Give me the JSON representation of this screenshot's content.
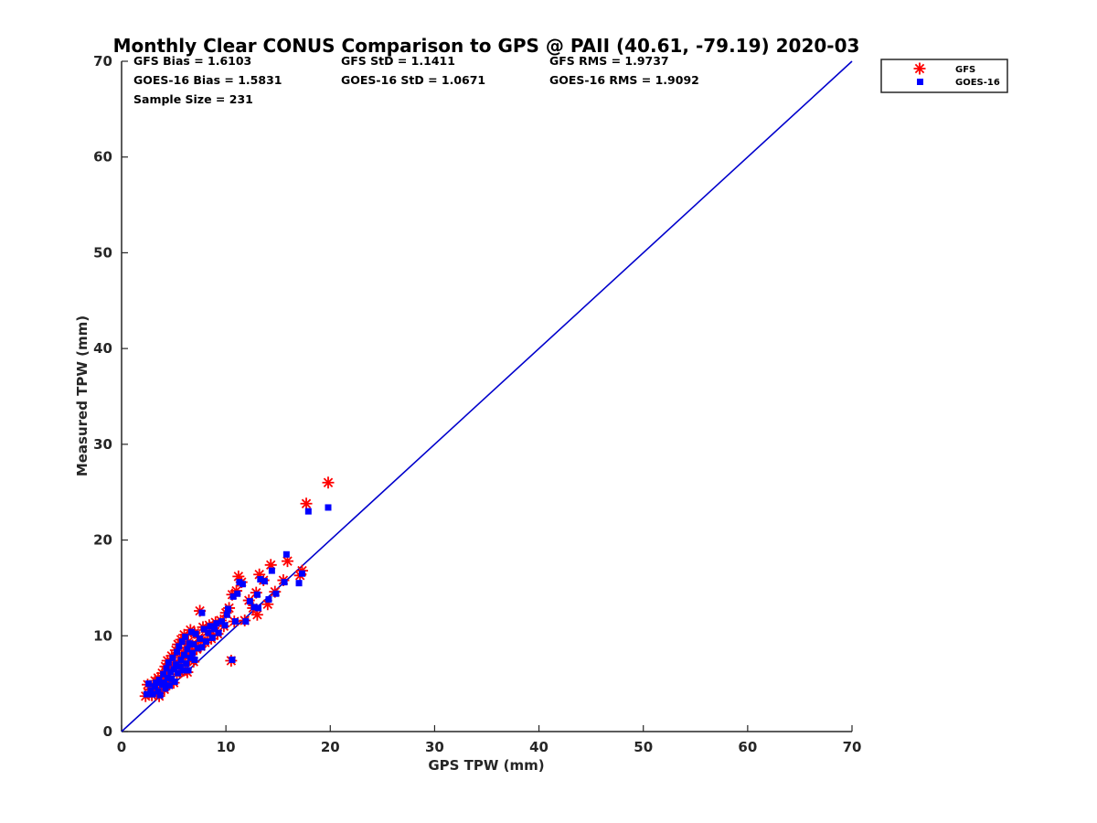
{
  "chart_data": {
    "type": "scatter",
    "title": "Monthly Clear CONUS Comparison to GPS @ PAII (40.61, -79.19) 2020-03",
    "xlabel": "GPS TPW (mm)",
    "ylabel": "Measured TPW (mm)",
    "xlim": [
      0,
      70
    ],
    "ylim": [
      0,
      70
    ],
    "xticks": [
      "0",
      "10",
      "20",
      "30",
      "40",
      "50",
      "60",
      "70"
    ],
    "yticks": [
      "0",
      "10",
      "20",
      "30",
      "40",
      "50",
      "60",
      "70"
    ],
    "grid": false,
    "legend_position": "top-right, outside plot",
    "stats": [
      {
        "text": "GFS Bias = 1.6103"
      },
      {
        "text": "GFS StD = 1.1411"
      },
      {
        "text": "GFS RMS = 1.9737"
      },
      {
        "text": "GOES-16 Bias = 1.5831"
      },
      {
        "text": "GOES-16 StD = 1.0671"
      },
      {
        "text": "GOES-16 RMS = 1.9092"
      },
      {
        "text": "Sample Size = 231"
      }
    ],
    "reference_line": {
      "x": [
        0,
        70
      ],
      "y": [
        0,
        70
      ],
      "color": "#0000cc"
    },
    "series": [
      {
        "name": "GFS",
        "marker": "asterisk",
        "color": "#ff0000",
        "points": [
          [
            2.3,
            3.7
          ],
          [
            2.5,
            4.9
          ],
          [
            2.7,
            4.4
          ],
          [
            2.9,
            3.8
          ],
          [
            3.1,
            4.6
          ],
          [
            3.2,
            5.3
          ],
          [
            3.4,
            4.1
          ],
          [
            3.5,
            5.6
          ],
          [
            3.6,
            3.7
          ],
          [
            3.8,
            4.8
          ],
          [
            3.9,
            6.1
          ],
          [
            4.0,
            5.2
          ],
          [
            4.1,
            4.4
          ],
          [
            4.2,
            6.8
          ],
          [
            4.3,
            5.7
          ],
          [
            4.4,
            7.4
          ],
          [
            4.5,
            4.9
          ],
          [
            4.6,
            6.3
          ],
          [
            4.7,
            5.4
          ],
          [
            4.8,
            7.9
          ],
          [
            4.9,
            6.6
          ],
          [
            5.0,
            5.1
          ],
          [
            5.1,
            7.2
          ],
          [
            5.2,
            8.5
          ],
          [
            5.3,
            6.0
          ],
          [
            5.4,
            9.1
          ],
          [
            5.5,
            6.9
          ],
          [
            5.6,
            7.7
          ],
          [
            5.7,
            9.6
          ],
          [
            5.8,
            6.3
          ],
          [
            5.9,
            8.2
          ],
          [
            6.0,
            10.1
          ],
          [
            6.1,
            7.0
          ],
          [
            6.2,
            8.8
          ],
          [
            6.3,
            6.2
          ],
          [
            6.4,
            9.4
          ],
          [
            6.5,
            7.6
          ],
          [
            6.6,
            10.6
          ],
          [
            6.7,
            8.1
          ],
          [
            6.8,
            9.0
          ],
          [
            6.9,
            7.3
          ],
          [
            7.0,
            10.3
          ],
          [
            7.2,
            8.6
          ],
          [
            7.4,
            9.8
          ],
          [
            7.5,
            12.6
          ],
          [
            7.6,
            8.9
          ],
          [
            7.8,
            10.9
          ],
          [
            8.0,
            9.3
          ],
          [
            8.2,
            10.4
          ],
          [
            8.4,
            11.1
          ],
          [
            8.6,
            9.7
          ],
          [
            8.8,
            10.8
          ],
          [
            9.0,
            11.4
          ],
          [
            9.2,
            10.2
          ],
          [
            9.5,
            11.6
          ],
          [
            9.8,
            11.0
          ],
          [
            10.0,
            12.4
          ],
          [
            10.3,
            12.9
          ],
          [
            10.6,
            14.3
          ],
          [
            10.5,
            7.4
          ],
          [
            10.8,
            11.5
          ],
          [
            11.0,
            14.7
          ],
          [
            11.2,
            16.2
          ],
          [
            11.5,
            15.6
          ],
          [
            11.8,
            11.6
          ],
          [
            12.2,
            13.7
          ],
          [
            12.6,
            12.9
          ],
          [
            12.9,
            14.5
          ],
          [
            13.2,
            16.4
          ],
          [
            13.0,
            12.2
          ],
          [
            13.6,
            15.8
          ],
          [
            14.0,
            13.3
          ],
          [
            14.3,
            17.4
          ],
          [
            14.7,
            14.6
          ],
          [
            15.5,
            15.8
          ],
          [
            15.9,
            17.8
          ],
          [
            17.1,
            16.3
          ],
          [
            17.3,
            16.8
          ],
          [
            17.7,
            23.8
          ],
          [
            19.8,
            26.0
          ]
        ]
      },
      {
        "name": "GOES-16",
        "marker": "square",
        "color": "#0000ff",
        "points": [
          [
            2.4,
            3.9
          ],
          [
            2.6,
            5.0
          ],
          [
            2.8,
            4.3
          ],
          [
            3.0,
            3.9
          ],
          [
            3.2,
            4.7
          ],
          [
            3.3,
            5.1
          ],
          [
            3.5,
            4.2
          ],
          [
            3.6,
            5.4
          ],
          [
            3.7,
            3.8
          ],
          [
            3.9,
            4.9
          ],
          [
            4.0,
            6.0
          ],
          [
            4.1,
            5.1
          ],
          [
            4.2,
            4.5
          ],
          [
            4.3,
            6.6
          ],
          [
            4.4,
            5.6
          ],
          [
            4.5,
            7.2
          ],
          [
            4.6,
            4.8
          ],
          [
            4.7,
            6.2
          ],
          [
            4.8,
            5.5
          ],
          [
            4.9,
            7.7
          ],
          [
            5.0,
            6.5
          ],
          [
            5.1,
            5.2
          ],
          [
            5.2,
            7.0
          ],
          [
            5.3,
            8.3
          ],
          [
            5.4,
            6.1
          ],
          [
            5.5,
            8.9
          ],
          [
            5.6,
            6.8
          ],
          [
            5.7,
            7.5
          ],
          [
            5.8,
            9.4
          ],
          [
            5.9,
            6.4
          ],
          [
            6.0,
            8.0
          ],
          [
            6.1,
            9.9
          ],
          [
            6.2,
            7.1
          ],
          [
            6.3,
            8.6
          ],
          [
            6.4,
            6.4
          ],
          [
            6.5,
            9.2
          ],
          [
            6.6,
            7.7
          ],
          [
            6.7,
            10.4
          ],
          [
            6.8,
            8.2
          ],
          [
            6.9,
            9.1
          ],
          [
            7.0,
            7.5
          ],
          [
            7.1,
            10.2
          ],
          [
            7.3,
            8.7
          ],
          [
            7.5,
            9.7
          ],
          [
            7.7,
            12.4
          ],
          [
            7.7,
            8.8
          ],
          [
            7.9,
            10.7
          ],
          [
            8.1,
            9.4
          ],
          [
            8.3,
            10.3
          ],
          [
            8.5,
            11.0
          ],
          [
            8.7,
            9.8
          ],
          [
            8.9,
            10.7
          ],
          [
            9.1,
            11.3
          ],
          [
            9.3,
            10.3
          ],
          [
            9.6,
            11.5
          ],
          [
            9.9,
            11.1
          ],
          [
            10.1,
            12.2
          ],
          [
            10.2,
            12.8
          ],
          [
            10.7,
            14.1
          ],
          [
            10.6,
            7.5
          ],
          [
            10.9,
            11.5
          ],
          [
            11.1,
            14.4
          ],
          [
            11.3,
            15.6
          ],
          [
            11.6,
            15.4
          ],
          [
            11.9,
            11.5
          ],
          [
            12.3,
            13.6
          ],
          [
            12.7,
            13.0
          ],
          [
            13.0,
            14.3
          ],
          [
            13.3,
            15.9
          ],
          [
            13.1,
            12.9
          ],
          [
            13.7,
            15.7
          ],
          [
            14.1,
            13.8
          ],
          [
            14.4,
            16.8
          ],
          [
            14.8,
            14.4
          ],
          [
            15.6,
            15.6
          ],
          [
            15.8,
            18.5
          ],
          [
            17.0,
            15.5
          ],
          [
            17.3,
            16.5
          ],
          [
            17.9,
            23.0
          ],
          [
            19.8,
            23.4
          ]
        ]
      }
    ]
  }
}
